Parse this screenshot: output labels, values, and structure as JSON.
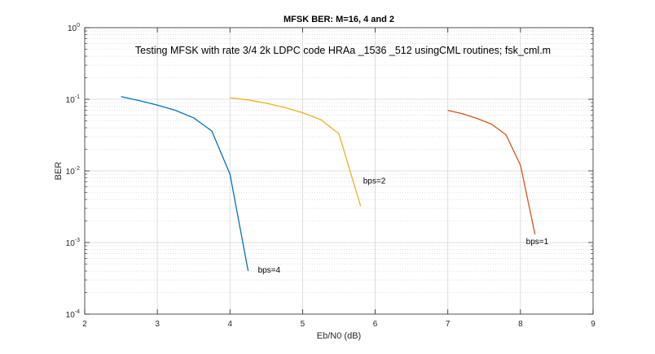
{
  "chart_data": {
    "type": "line",
    "title": "MFSK BER: M=16, 4 and 2",
    "subtitle": "Testing MFSK with rate 3/4 2k LDPC code HRAa _1536 _512 usingCML routines;  fsk_cml.m",
    "xlabel": "Eb/N0  (dB)",
    "ylabel": "BER",
    "xlim": [
      2,
      9
    ],
    "ylim": [
      0.0001,
      1
    ],
    "yscale": "log",
    "grid": true,
    "minor_grid": true,
    "x_ticks": [
      "2",
      "3",
      "4",
      "5",
      "6",
      "7",
      "8",
      "9"
    ],
    "y_ticks": [
      {
        "base": "10",
        "exp": "-4"
      },
      {
        "base": "10",
        "exp": "-3"
      },
      {
        "base": "10",
        "exp": "-2"
      },
      {
        "base": "10",
        "exp": "-1"
      },
      {
        "base": "10",
        "exp": "0"
      }
    ],
    "series": [
      {
        "label": "bps=4",
        "color": "#0072bd",
        "x": [
          2.5,
          2.75,
          3.0,
          3.25,
          3.5,
          3.75,
          4.0,
          4.25
        ],
        "y": [
          0.109,
          0.096,
          0.083,
          0.07,
          0.055,
          0.036,
          0.009,
          0.0004
        ]
      },
      {
        "label": "bps=2",
        "color": "#edb120",
        "x": [
          4.0,
          4.25,
          4.5,
          4.75,
          5.0,
          5.25,
          5.5,
          5.8
        ],
        "y": [
          0.105,
          0.098,
          0.088,
          0.077,
          0.065,
          0.052,
          0.033,
          0.0032
        ]
      },
      {
        "label": "bps=1",
        "color": "#d95319",
        "x": [
          7.0,
          7.2,
          7.4,
          7.6,
          7.8,
          8.0,
          8.2
        ],
        "y": [
          0.07,
          0.063,
          0.054,
          0.045,
          0.032,
          0.012,
          0.0013
        ]
      }
    ]
  }
}
